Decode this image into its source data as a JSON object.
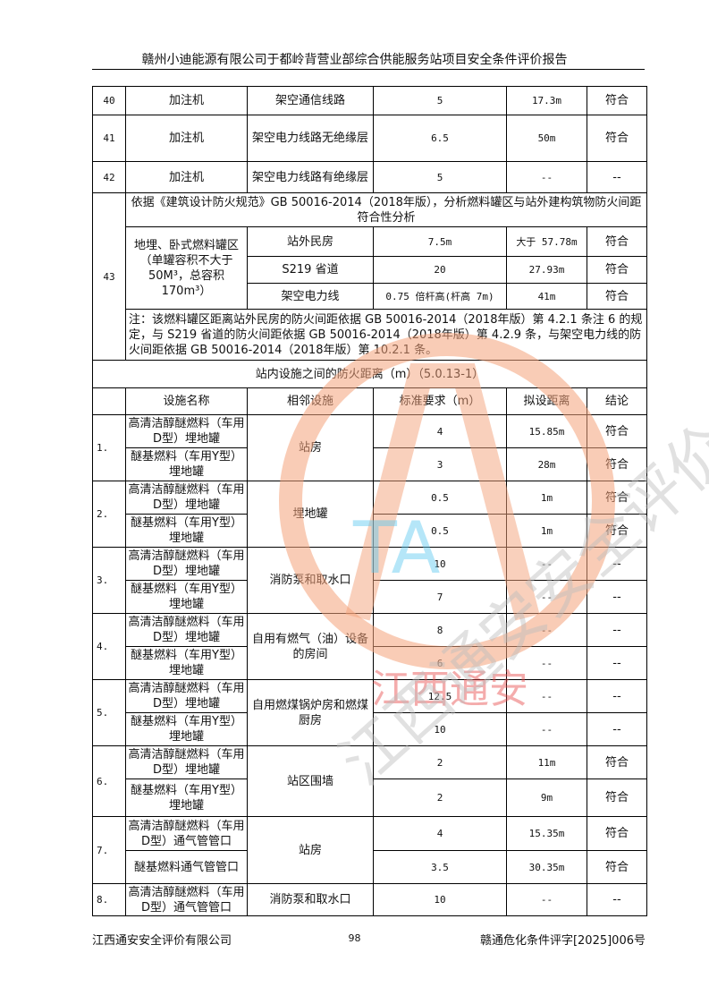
{
  "header": {
    "title": "赣州小迪能源有限公司于都岭背营业部综合供能服务站项目安全条件评价报告"
  },
  "top_rows": [
    {
      "no": "40",
      "a": "加注机",
      "b": "架空通信线路",
      "std": "5",
      "dist": "17.3m",
      "res": "符合"
    },
    {
      "no": "41",
      "a": "加注机",
      "b": "架空电力线路无绝缘层",
      "std": "6.5",
      "dist": "50m",
      "res": "符合"
    },
    {
      "no": "42",
      "a": "加注机",
      "b": "架空电力线路有绝缘层",
      "std": "5",
      "dist": "--",
      "res": "--"
    }
  ],
  "row43": {
    "no": "43",
    "title": "依据《建筑设计防火规范》GB 50016-2014（2018年版），分析燃料罐区与站外建构筑物防火间距符合性分析",
    "area": "地埋、卧式燃料罐区（单罐容积不大于50M³，总容积 170m³）",
    "items": [
      {
        "b": "站外民房",
        "std": "7.5m",
        "dist": "大于 57.78m",
        "res": "符合"
      },
      {
        "b": "S219 省道",
        "std": "20",
        "dist": "27.93m",
        "res": "符合"
      },
      {
        "b": "架空电力线",
        "std": "0.75 倍杆高(杆高 7m)",
        "dist": "41m",
        "res": "符合"
      }
    ],
    "note": "注：该燃料罐区距离站外民房的防火间距依据 GB 50016-2014（2018年版）第 4.2.1 条注 6 的规定，与 S219 省道的防火间距依据 GB 50016-2014（2018年版）第 4.2.9 条，与架空电力线的防火间距依据 GB 50016-2014（2018年版）第 10.2.1 条。"
  },
  "section": {
    "title": "站内设施之间的防火距离（m）（5.0.13-1）",
    "columns": [
      "",
      "设施名称",
      "相邻设施",
      "标准要求（m）",
      "拟设距离",
      "结论"
    ],
    "groups": [
      {
        "no": "1.",
        "adj": "站房",
        "rows": [
          {
            "name": "高清洁醇醚燃料（车用D型）埋地罐",
            "std": "4",
            "dist": "15.85m",
            "res": "符合"
          },
          {
            "name": "醚基燃料（车用Y型）埋地罐",
            "std": "3",
            "dist": "28m",
            "res": "符合"
          }
        ]
      },
      {
        "no": "2.",
        "adj": "埋地罐",
        "rows": [
          {
            "name": "高清洁醇醚燃料（车用D型）埋地罐",
            "std": "0.5",
            "dist": "1m",
            "res": "符合"
          },
          {
            "name": "醚基燃料（车用Y型）埋地罐",
            "std": "0.5",
            "dist": "1m",
            "res": "符合"
          }
        ]
      },
      {
        "no": "3.",
        "adj": "消防泵和取水口",
        "rows": [
          {
            "name": "高清洁醇醚燃料（车用D型）埋地罐",
            "std": "10",
            "dist": "--",
            "res": "--"
          },
          {
            "name": "醚基燃料（车用Y型）埋地罐",
            "std": "7",
            "dist": "--",
            "res": "--"
          }
        ]
      },
      {
        "no": "4.",
        "adj": "自用有燃气（油）设备的房间",
        "rows": [
          {
            "name": "高清洁醇醚燃料（车用D型）埋地罐",
            "std": "8",
            "dist": "--",
            "res": "--"
          },
          {
            "name": "醚基燃料（车用Y型）埋地罐",
            "std": "6",
            "dist": "--",
            "res": "--"
          }
        ]
      },
      {
        "no": "5.",
        "adj": "自用燃煤锅炉房和燃煤厨房",
        "rows": [
          {
            "name": "高清洁醇醚燃料（车用D型）埋地罐",
            "std": "12.5",
            "dist": "--",
            "res": "--"
          },
          {
            "name": "醚基燃料（车用Y型）埋地罐",
            "std": "10",
            "dist": "--",
            "res": "--"
          }
        ]
      },
      {
        "no": "6.",
        "adj": "站区围墙",
        "rows": [
          {
            "name": "高清洁醇醚燃料（车用D型）埋地罐",
            "std": "2",
            "dist": "11m",
            "res": "符合"
          },
          {
            "name": "醚基燃料（车用Y型）埋地罐",
            "std": "2",
            "dist": "9m",
            "res": "符合"
          }
        ]
      },
      {
        "no": "7.",
        "adj": "站房",
        "rows": [
          {
            "name": "高清洁醇醚燃料（车用D型）通气管管口",
            "std": "4",
            "dist": "15.35m",
            "res": "符合"
          },
          {
            "name": "醚基燃料通气管管口",
            "std": "3.5",
            "dist": "30.35m",
            "res": "符合"
          }
        ]
      },
      {
        "no": "8.",
        "adj": "消防泵和取水口",
        "rows": [
          {
            "name": "高清洁醇醚燃料（车用D型）通气管管口",
            "std": "10",
            "dist": "--",
            "res": "--"
          }
        ]
      }
    ]
  },
  "footer": {
    "company": "江西通安安全评价有限公司",
    "page": "98",
    "doc_no": "赣通危化条件评字[2025]006号"
  },
  "watermark": {
    "stamp_text": "江西通安",
    "letters": "TA",
    "colors": {
      "circle": "#f4a27a",
      "stamp": "#e84a4a",
      "letters": "#5cc8f0",
      "gray": "#bdbdbd"
    }
  }
}
